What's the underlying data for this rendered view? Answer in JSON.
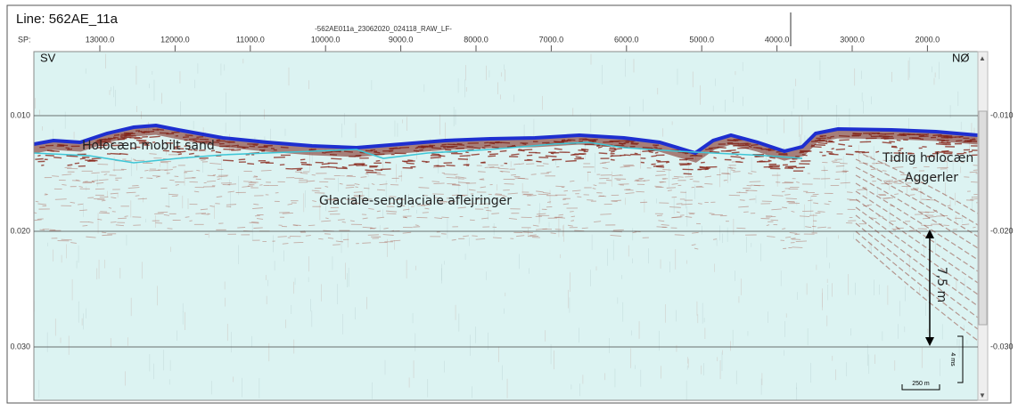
{
  "header": {
    "line_title": "Line: 562AE_11a",
    "file_name": "-562AE011a_23062020_024118_RAW_LF-",
    "sp_label": "SP:",
    "sp_ticks": [
      "13000.0",
      "12000.0",
      "11000.0",
      "10000.0",
      "9000.0",
      "8000.0",
      "7000.0",
      "6000.0",
      "5000.0",
      "4000.0",
      "3000.0",
      "2000.0"
    ]
  },
  "axis": {
    "left_ticks": [
      "0.010",
      "0.020",
      "0.030"
    ],
    "right_ticks": [
      "-0.010",
      "-0.020",
      "-0.030"
    ]
  },
  "annotations": {
    "left_direction": "SV",
    "right_direction": "NØ",
    "holocene_sand": "Holocæn mobilt sand",
    "glacial": "Glaciale-senglaciale aflejringer",
    "early_holocene_line1": "Tidlig holocæn",
    "early_holocene_line2": "Aggerler",
    "thickness": "7,5 m",
    "vertical_scale": "4 ms",
    "horizontal_scale": "250 m"
  }
}
